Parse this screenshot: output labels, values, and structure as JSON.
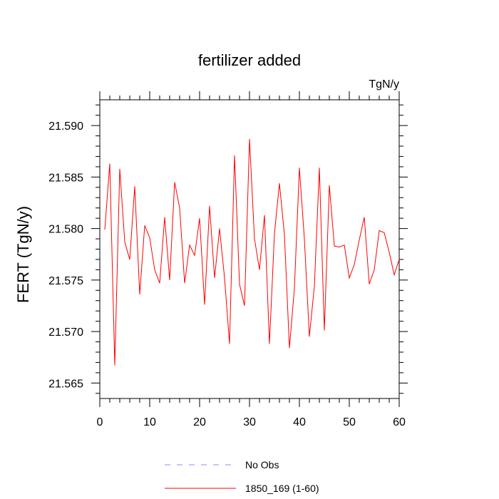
{
  "chart_data": {
    "type": "line",
    "title": "fertilizer added",
    "units_label": "TgN/y",
    "ylabel": "FERT  (TgN/y)",
    "xlabel": "",
    "xlim": [
      0,
      60
    ],
    "ylim": [
      21.5635,
      21.5925
    ],
    "x_ticks": [
      0,
      10,
      20,
      30,
      40,
      50,
      60
    ],
    "x_tick_labels": [
      "0",
      "10",
      "20",
      "30",
      "40",
      "50",
      "60"
    ],
    "y_ticks": [
      21.565,
      21.57,
      21.575,
      21.58,
      21.585,
      21.59
    ],
    "y_tick_labels": [
      "21.565",
      "21.570",
      "21.575",
      "21.580",
      "21.585",
      "21.590"
    ],
    "grid": false,
    "legend_position": "bottom-center",
    "series": [
      {
        "name": "No Obs",
        "color": "#8c8cff",
        "dash": "dashed",
        "x": [],
        "values": []
      },
      {
        "name": "1850_169 (1-60)",
        "color": "#ff0000",
        "dash": "solid",
        "x": [
          1,
          2,
          3,
          4,
          5,
          6,
          7,
          8,
          9,
          10,
          11,
          12,
          13,
          14,
          15,
          16,
          17,
          18,
          19,
          20,
          21,
          22,
          23,
          24,
          25,
          26,
          27,
          28,
          29,
          30,
          31,
          32,
          33,
          34,
          35,
          36,
          37,
          38,
          39,
          40,
          41,
          42,
          43,
          44,
          45,
          46,
          47,
          48,
          49,
          50,
          51,
          52,
          53,
          54,
          55,
          56,
          57,
          58,
          59,
          60
        ],
        "values": [
          21.5799,
          21.5863,
          21.5667,
          21.5858,
          21.5787,
          21.577,
          21.5841,
          21.5736,
          21.5803,
          21.5791,
          21.576,
          21.5747,
          21.5811,
          21.575,
          21.5845,
          21.582,
          21.5747,
          21.5784,
          21.5774,
          21.581,
          21.5726,
          21.5822,
          21.5752,
          21.58,
          21.5752,
          21.5688,
          21.5871,
          21.5746,
          21.5725,
          21.5887,
          21.579,
          21.576,
          21.5813,
          21.5688,
          21.5795,
          21.5844,
          21.5794,
          21.5684,
          21.5742,
          21.5859,
          21.579,
          21.5695,
          21.5744,
          21.5859,
          21.5701,
          21.5842,
          21.5783,
          21.5782,
          21.5784,
          21.5752,
          21.5765,
          21.5789,
          21.5811,
          21.5746,
          21.576,
          21.5798,
          21.5796,
          21.5777,
          21.5755,
          21.577
        ]
      }
    ]
  }
}
